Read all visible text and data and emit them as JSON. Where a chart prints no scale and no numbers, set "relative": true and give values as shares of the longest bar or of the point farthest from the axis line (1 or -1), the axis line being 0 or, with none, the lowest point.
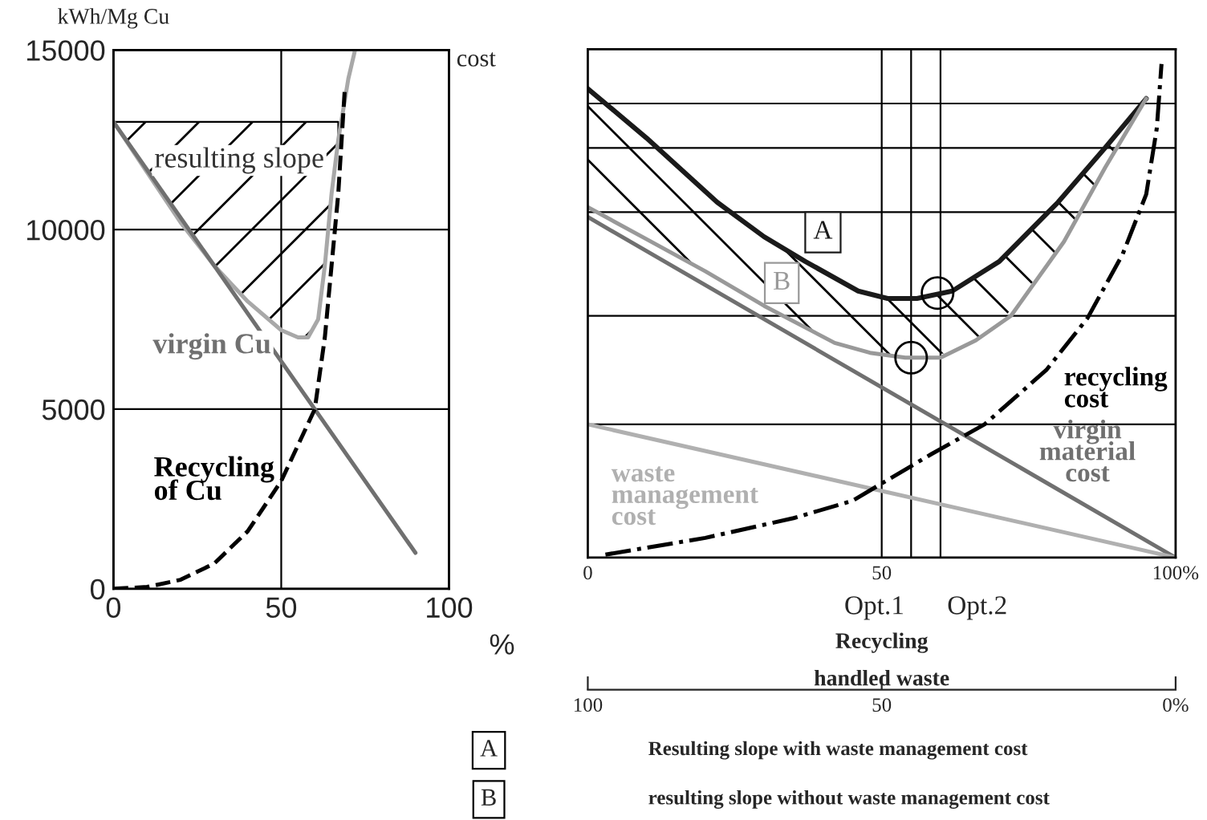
{
  "chart_data": [
    {
      "type": "line",
      "ylabel": "kWh/Mg Cu",
      "xlabel": "%",
      "xlim": [
        0,
        100
      ],
      "ylim": [
        0,
        15000
      ],
      "xticks": [
        0,
        50,
        100
      ],
      "yticks": [
        0,
        5000,
        10000,
        15000
      ],
      "grid": true,
      "series": [
        {
          "name": "resulting slope",
          "color": "#a8a8a8",
          "x": [
            0,
            10,
            20,
            30,
            40,
            50,
            55,
            58,
            61,
            63,
            65,
            67,
            70,
            72
          ],
          "values": [
            13000,
            11600,
            10200,
            9000,
            8000,
            7200,
            7000,
            7000,
            7500,
            9000,
            11000,
            12500,
            14200,
            15000
          ]
        },
        {
          "name": "virgin Cu",
          "color": "#707070",
          "x": [
            0,
            90
          ],
          "values": [
            13000,
            1000
          ]
        },
        {
          "name": "Recycling\nof Cu",
          "color": "#000000",
          "line_style": "dashed",
          "x": [
            0,
            10,
            20,
            30,
            40,
            50,
            55,
            60,
            63,
            65,
            67,
            69
          ],
          "values": [
            0,
            50,
            250,
            700,
            1600,
            3000,
            4000,
            5000,
            7000,
            9000,
            11000,
            14000
          ]
        }
      ]
    },
    {
      "type": "line",
      "relative": true,
      "ylabel": "cost",
      "xlabel": "Recycling",
      "x2label": "handled waste",
      "xlim": [
        0,
        100
      ],
      "xticks": [
        0,
        50,
        {
          "value": 100,
          "label": "100%"
        }
      ],
      "x2lim": [
        100,
        0
      ],
      "x2ticks": [
        100,
        50,
        {
          "value": 0,
          "label": "0%"
        }
      ],
      "ref_lines": [
        {
          "axis": "x",
          "value": 50
        },
        {
          "axis": "y",
          "value": 0.92
        },
        {
          "axis": "y",
          "value": 0.83
        },
        {
          "axis": "y",
          "value": 0.7
        },
        {
          "axis": "y",
          "value": 0.49
        },
        {
          "axis": "y",
          "value": 0.27
        },
        {
          "axis": "x",
          "value": 55,
          "label": "Opt.1"
        },
        {
          "axis": "x",
          "value": 60,
          "label": "Opt.2"
        }
      ],
      "series": [
        {
          "name": "A",
          "color": "#1a1a1a",
          "x": [
            0,
            10,
            22,
            30,
            37,
            46,
            51,
            56,
            62,
            70,
            80,
            88,
            95
          ],
          "values": [
            0.95,
            0.85,
            0.72,
            0.65,
            0.6,
            0.54,
            0.525,
            0.525,
            0.54,
            0.6,
            0.72,
            0.83,
            0.93
          ]
        },
        {
          "name": "B",
          "color": "#999999",
          "x": [
            0,
            10,
            20,
            30,
            42,
            48,
            54,
            60,
            66,
            72,
            81,
            88,
            95
          ],
          "values": [
            0.71,
            0.645,
            0.58,
            0.51,
            0.435,
            0.415,
            0.405,
            0.405,
            0.44,
            0.49,
            0.64,
            0.79,
            0.93
          ]
        },
        {
          "name": "virgin\nmaterial\ncost",
          "color": "#707070",
          "x": [
            0,
            100
          ],
          "values": [
            0.69,
            0
          ]
        },
        {
          "name": "waste\nmanagement\ncost",
          "color": "#b0b0b0",
          "x": [
            0,
            100
          ],
          "values": [
            0.27,
            0
          ]
        },
        {
          "name": "recycling\ncost",
          "color": "#000000",
          "line_style": "dashdot",
          "x": [
            3,
            20,
            35,
            45,
            58.5,
            67.5,
            78,
            85,
            91,
            95,
            96.8,
            97.6
          ],
          "values": [
            0.006,
            0.04,
            0.08,
            0.115,
            0.21,
            0.27,
            0.38,
            0.485,
            0.615,
            0.736,
            0.87,
            1.0
          ]
        },
        {
          "type": "scatter",
          "color": "#000000",
          "marker": "circle",
          "x": [
            55,
            59.5
          ],
          "values": [
            0.405,
            0.536
          ]
        }
      ],
      "annotations": [
        "A",
        "Resulting slope with waste management cost",
        "B",
        "resulting slope without waste management cost"
      ]
    }
  ]
}
